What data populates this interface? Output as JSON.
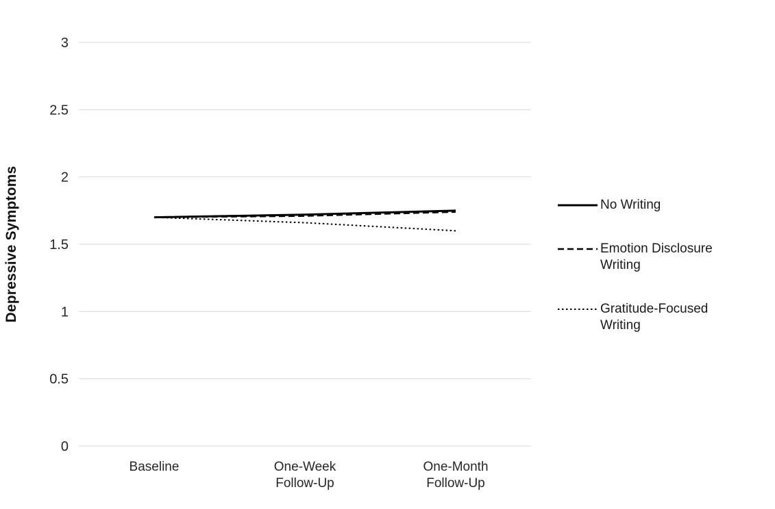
{
  "chart_data": {
    "type": "line",
    "title": "",
    "xlabel": "",
    "ylabel": "Depressive Symptoms",
    "categories": [
      "Baseline",
      "One-Week\nFollow-Up",
      "One-Month\nFollow-Up"
    ],
    "ylim": [
      0,
      3
    ],
    "yticks": [
      0,
      0.5,
      1,
      1.5,
      2,
      2.5,
      3
    ],
    "grid": "horizontal",
    "legend_position": "right",
    "series": [
      {
        "name": "No Writing",
        "dash": "solid",
        "values": [
          1.7,
          1.72,
          1.75
        ]
      },
      {
        "name": "Emotion Disclosure Writing",
        "dash": "dashed",
        "values": [
          1.7,
          1.71,
          1.74
        ]
      },
      {
        "name": "Gratitude-Focused Writing",
        "dash": "dotted",
        "values": [
          1.7,
          1.66,
          1.6
        ]
      }
    ],
    "colors": {
      "line": "#000000",
      "grid": "#d9d9d9",
      "text": "#262626"
    }
  }
}
